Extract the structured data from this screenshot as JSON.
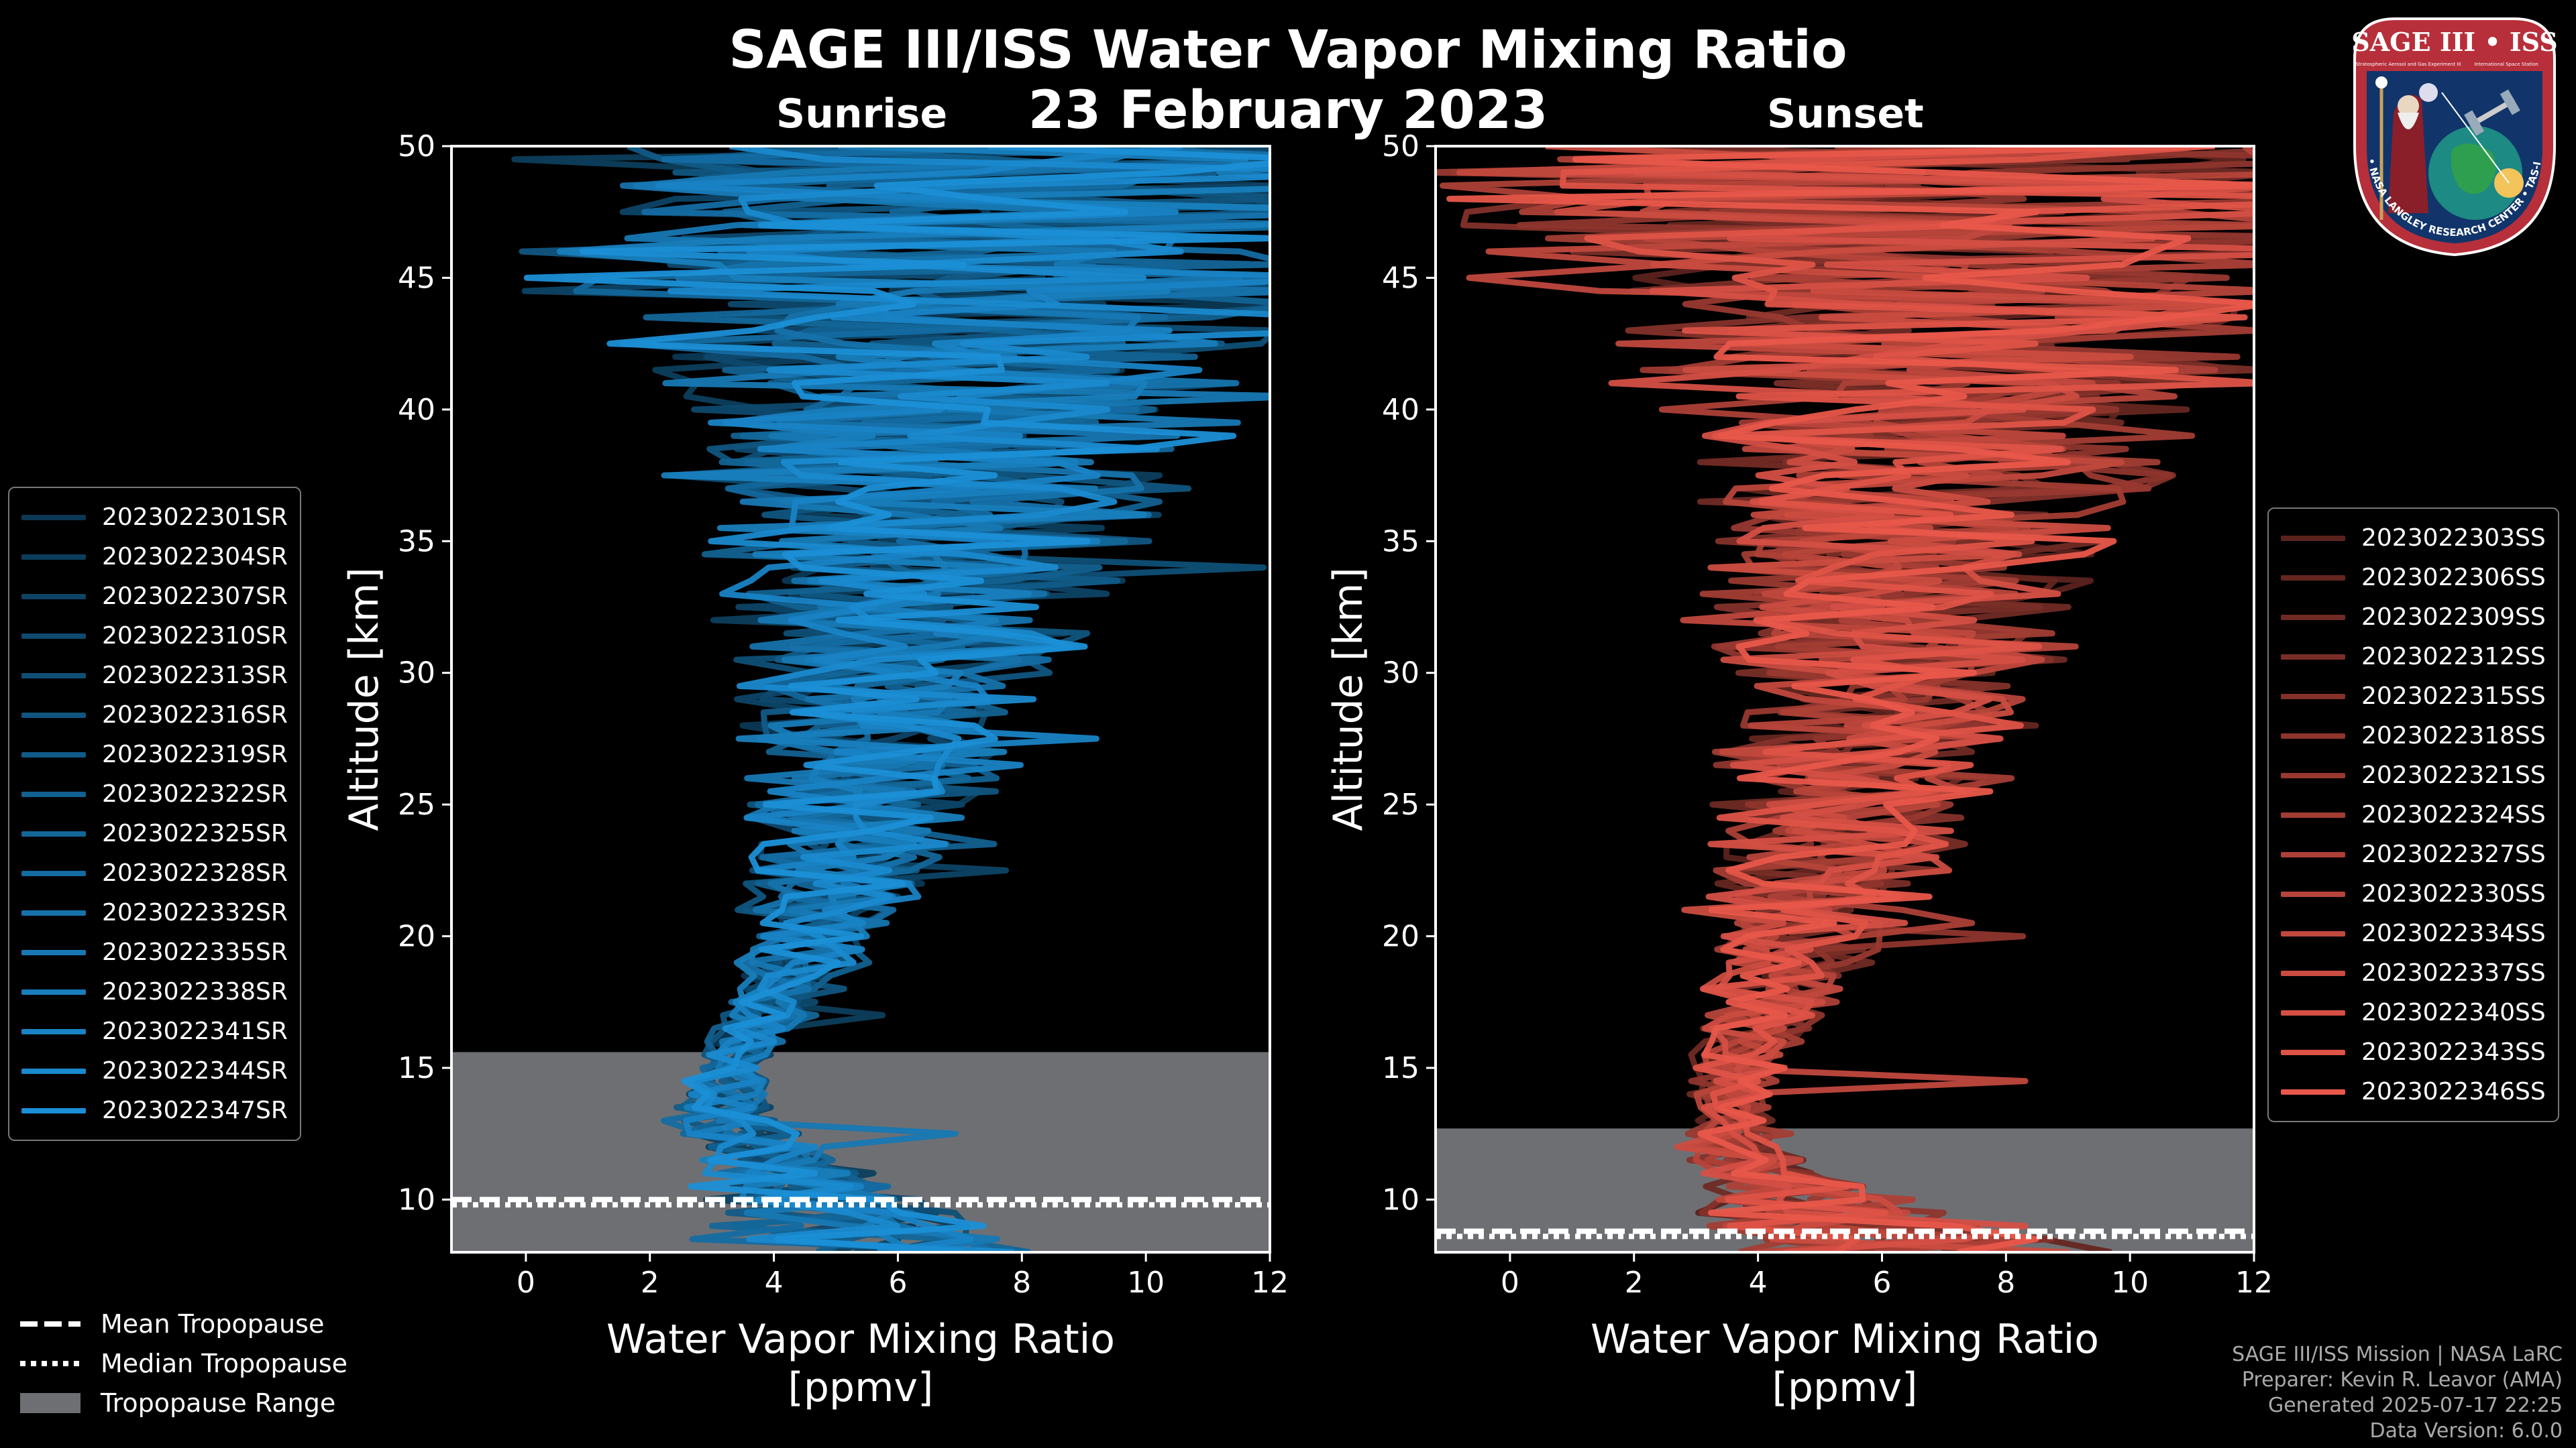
{
  "title": "SAGE III/ISS Water Vapor Mixing Ratio",
  "date": "23 February 2023",
  "subtitles": {
    "sunrise": "Sunrise",
    "sunset": "Sunset"
  },
  "chart_data": [
    {
      "type": "line",
      "name": "Sunrise",
      "color": "#1b8fd6",
      "xlabel_line1": "Water Vapor Mixing Ratio",
      "xlabel_line2": "[ppmv]",
      "ylabel": "Altitude [km]",
      "xlim": [
        -1.2,
        12
      ],
      "ylim": [
        8,
        50
      ],
      "xticks": [
        0,
        2,
        4,
        6,
        8,
        10,
        12
      ],
      "yticks": [
        10,
        15,
        20,
        25,
        30,
        35,
        40,
        45,
        50
      ],
      "tropopause_range": [
        8,
        15.6
      ],
      "mean_tropopause_km": 10.0,
      "median_tropopause_km": 9.8,
      "series": [
        "2023022301SR",
        "2023022304SR",
        "2023022307SR",
        "2023022310SR",
        "2023022313SR",
        "2023022316SR",
        "2023022319SR",
        "2023022322SR",
        "2023022325SR",
        "2023022328SR",
        "2023022332SR",
        "2023022335SR",
        "2023022338SR",
        "2023022341SR",
        "2023022344SR",
        "2023022347SR"
      ],
      "profile_shape": {
        "center_ppmv": [
          [
            8,
            5.8
          ],
          [
            11,
            4.2
          ],
          [
            13,
            3.2
          ],
          [
            15,
            3.3
          ],
          [
            18,
            4.2
          ],
          [
            22,
            5.0
          ],
          [
            26,
            5.6
          ],
          [
            30,
            6.0
          ],
          [
            35,
            6.4
          ],
          [
            40,
            6.8
          ],
          [
            45,
            7.2
          ],
          [
            50,
            7.5
          ]
        ],
        "spread_ppmv": [
          [
            8,
            2.5
          ],
          [
            12,
            1.0
          ],
          [
            15,
            0.5
          ],
          [
            18,
            0.8
          ],
          [
            22,
            1.3
          ],
          [
            26,
            1.8
          ],
          [
            30,
            2.4
          ],
          [
            35,
            3.0
          ],
          [
            40,
            4.0
          ],
          [
            45,
            6.0
          ],
          [
            50,
            7.5
          ]
        ]
      }
    },
    {
      "type": "line",
      "name": "Sunset",
      "color": "#e8574a",
      "xlabel_line1": "Water Vapor Mixing Ratio",
      "xlabel_line2": "[ppmv]",
      "ylabel": "Altitude [km]",
      "xlim": [
        -1.2,
        12
      ],
      "ylim": [
        8,
        50
      ],
      "xticks": [
        0,
        2,
        4,
        6,
        8,
        10,
        12
      ],
      "yticks": [
        10,
        15,
        20,
        25,
        30,
        35,
        40,
        45,
        50
      ],
      "tropopause_range": [
        8,
        12.7
      ],
      "mean_tropopause_km": 8.8,
      "median_tropopause_km": 8.6,
      "series": [
        "2023022303SS",
        "2023022306SS",
        "2023022309SS",
        "2023022312SS",
        "2023022315SS",
        "2023022318SS",
        "2023022321SS",
        "2023022324SS",
        "2023022327SS",
        "2023022330SS",
        "2023022334SS",
        "2023022337SS",
        "2023022340SS",
        "2023022343SS",
        "2023022346SS"
      ],
      "profile_shape": {
        "center_ppmv": [
          [
            8,
            6.5
          ],
          [
            10,
            4.5
          ],
          [
            12,
            3.5
          ],
          [
            15,
            3.6
          ],
          [
            18,
            4.3
          ],
          [
            22,
            5.0
          ],
          [
            26,
            5.6
          ],
          [
            30,
            6.0
          ],
          [
            35,
            6.4
          ],
          [
            40,
            6.8
          ],
          [
            45,
            7.2
          ],
          [
            50,
            7.5
          ]
        ],
        "spread_ppmv": [
          [
            8,
            3.0
          ],
          [
            11,
            1.0
          ],
          [
            14,
            0.6
          ],
          [
            18,
            1.0
          ],
          [
            22,
            1.6
          ],
          [
            26,
            2.0
          ],
          [
            30,
            2.4
          ],
          [
            35,
            3.0
          ],
          [
            40,
            4.0
          ],
          [
            45,
            6.5
          ],
          [
            50,
            8.0
          ]
        ]
      }
    }
  ],
  "legend_bottom": {
    "mean": "Mean Tropopause",
    "median": "Median Tropopause",
    "range": "Tropopause Range"
  },
  "credits": {
    "line1": "SAGE III/ISS Mission | NASA LaRC",
    "line2": "Preparer: Kevin R. Leavor (AMA)",
    "line3": "Generated 2025-07-17 22:25",
    "line4": "Data Version: 6.0.0"
  },
  "logo": {
    "top_text": "SAGE III • ISS",
    "sub_text_a": "Stratospheric Aerosol and Gas Experiment III",
    "sub_text_b": "International Space Station",
    "ring_text": "BALL • NASA LANGLEY RESEARCH CENTER • TAS-I • ESA"
  },
  "colors": {
    "background": "#000000",
    "tropopause_fill": "#6e6f73",
    "sunrise": "#1b8fd6",
    "sunset": "#e8574a"
  }
}
